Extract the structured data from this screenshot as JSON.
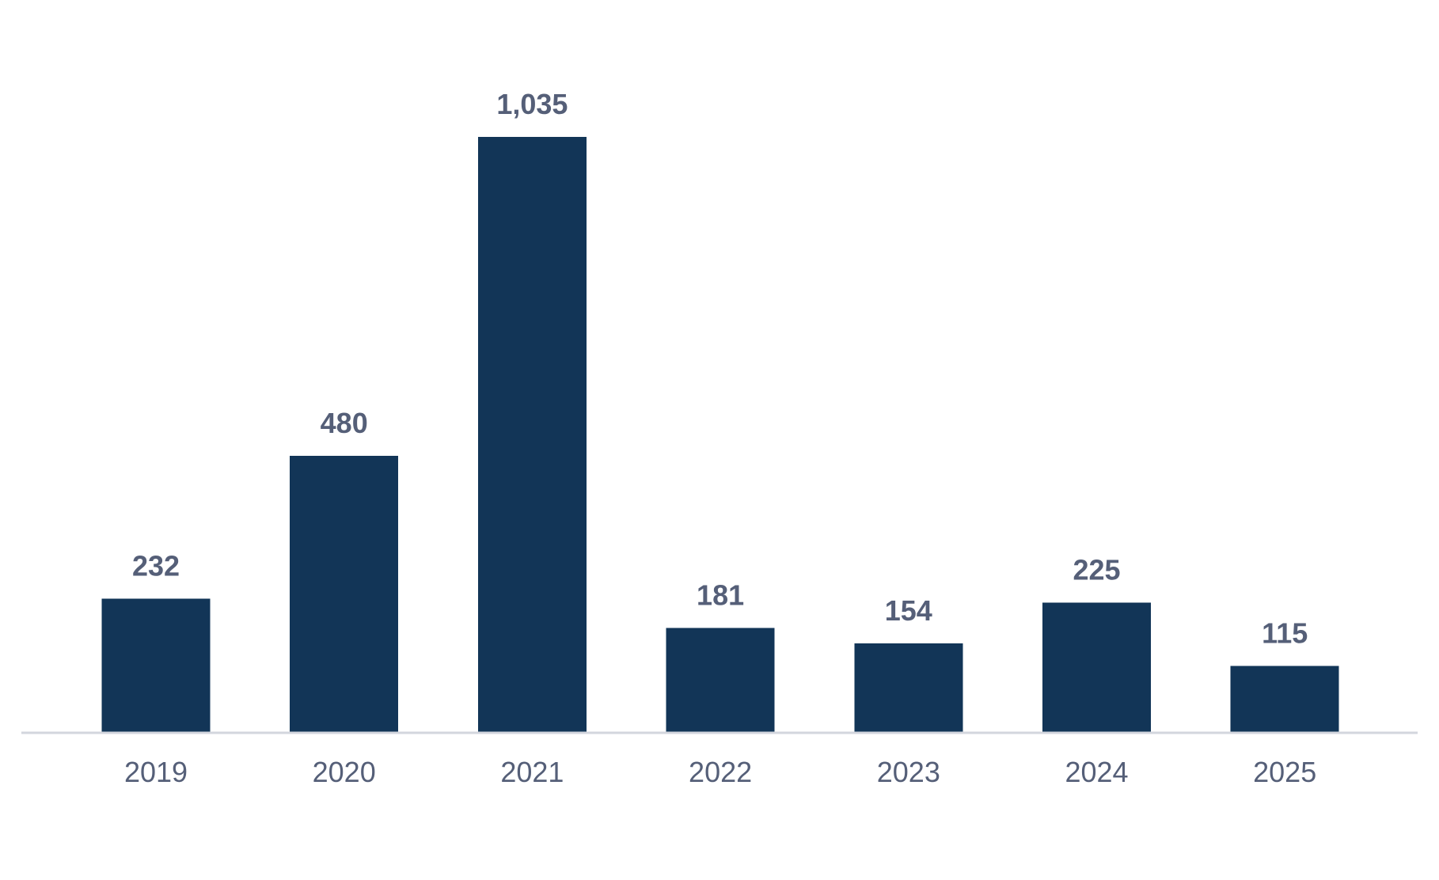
{
  "chart_data": {
    "type": "bar",
    "title": "",
    "xlabel": "",
    "ylabel": "",
    "categories": [
      "2019",
      "2020",
      "2021",
      "2022",
      "2023",
      "2024",
      "2025"
    ],
    "values": [
      232,
      480,
      1035,
      181,
      154,
      225,
      115
    ],
    "value_labels": [
      "232",
      "480",
      "1,035",
      "181",
      "154",
      "225",
      "115"
    ],
    "ylim": [
      0,
      1035
    ],
    "grid": false,
    "legend": "none",
    "colors": {
      "bar": "#123557",
      "label": "#555f78",
      "axis": "#d3d6de"
    }
  }
}
